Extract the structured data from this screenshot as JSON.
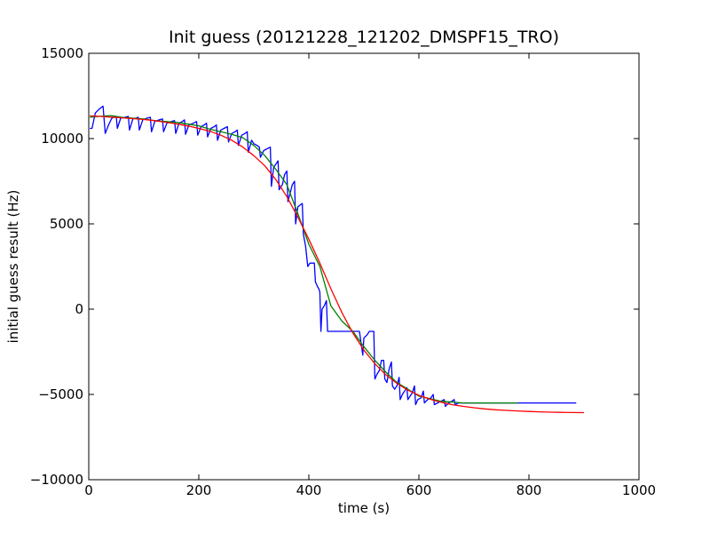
{
  "chart_data": {
    "type": "line",
    "title": "Init guess (20121228_121202_DMSPF15_TRO)",
    "xlabel": "time (s)",
    "ylabel": "initial guess result (Hz)",
    "xlim": [
      0,
      1000
    ],
    "ylim": [
      -10000,
      15000
    ],
    "x_ticks": [
      0,
      200,
      400,
      600,
      800,
      1000
    ],
    "y_ticks": [
      -10000,
      -5000,
      0,
      5000,
      10000,
      15000
    ],
    "x_tick_labels": [
      "0",
      "200",
      "400",
      "600",
      "800",
      "1000"
    ],
    "y_tick_labels": [
      "−10000",
      "−5000",
      "0",
      "5000",
      "10000",
      "15000"
    ],
    "grid": false,
    "legend": "none",
    "series": [
      {
        "color": "#0000ff",
        "points": [
          [
            2,
            10600
          ],
          [
            6,
            10600
          ],
          [
            12,
            11500
          ],
          [
            18,
            11700
          ],
          [
            22,
            11800
          ],
          [
            26,
            11900
          ],
          [
            30,
            10300
          ],
          [
            36,
            10800
          ],
          [
            42,
            11200
          ],
          [
            46,
            11250
          ],
          [
            50,
            11300
          ],
          [
            52,
            10600
          ],
          [
            58,
            11200
          ],
          [
            66,
            11250
          ],
          [
            72,
            11300
          ],
          [
            74,
            10500
          ],
          [
            80,
            11150
          ],
          [
            86,
            11200
          ],
          [
            90,
            11250
          ],
          [
            92,
            10500
          ],
          [
            98,
            11100
          ],
          [
            106,
            11200
          ],
          [
            112,
            11250
          ],
          [
            114,
            10400
          ],
          [
            120,
            11000
          ],
          [
            128,
            11100
          ],
          [
            134,
            11150
          ],
          [
            136,
            10400
          ],
          [
            142,
            10900
          ],
          [
            150,
            11000
          ],
          [
            156,
            11050
          ],
          [
            158,
            10300
          ],
          [
            164,
            10900
          ],
          [
            170,
            11000
          ],
          [
            174,
            11100
          ],
          [
            176,
            10250
          ],
          [
            182,
            10800
          ],
          [
            190,
            10900
          ],
          [
            196,
            11000
          ],
          [
            198,
            10200
          ],
          [
            204,
            10700
          ],
          [
            210,
            10800
          ],
          [
            214,
            10900
          ],
          [
            216,
            10100
          ],
          [
            222,
            10600
          ],
          [
            228,
            10700
          ],
          [
            232,
            10800
          ],
          [
            234,
            9900
          ],
          [
            240,
            10500
          ],
          [
            246,
            10600
          ],
          [
            252,
            10700
          ],
          [
            254,
            9800
          ],
          [
            260,
            10300
          ],
          [
            266,
            10400
          ],
          [
            270,
            10500
          ],
          [
            272,
            9600
          ],
          [
            278,
            10200
          ],
          [
            284,
            10300
          ],
          [
            288,
            10400
          ],
          [
            290,
            9200
          ],
          [
            296,
            9900
          ],
          [
            300,
            9700
          ],
          [
            306,
            9600
          ],
          [
            310,
            9500
          ],
          [
            312,
            8900
          ],
          [
            318,
            9300
          ],
          [
            324,
            9400
          ],
          [
            330,
            9500
          ],
          [
            332,
            7200
          ],
          [
            336,
            8300
          ],
          [
            340,
            8500
          ],
          [
            344,
            8700
          ],
          [
            346,
            7000
          ],
          [
            352,
            7300
          ],
          [
            356,
            7900
          ],
          [
            360,
            8100
          ],
          [
            362,
            6300
          ],
          [
            366,
            6800
          ],
          [
            370,
            7300
          ],
          [
            374,
            7500
          ],
          [
            376,
            5000
          ],
          [
            380,
            6000
          ],
          [
            384,
            6100
          ],
          [
            388,
            6200
          ],
          [
            390,
            4400
          ],
          [
            394,
            3700
          ],
          [
            398,
            2500
          ],
          [
            402,
            2700
          ],
          [
            406,
            2700
          ],
          [
            410,
            2700
          ],
          [
            412,
            1600
          ],
          [
            416,
            1300
          ],
          [
            418,
            1200
          ],
          [
            420,
            1000
          ],
          [
            422,
            -1300
          ],
          [
            424,
            0
          ],
          [
            428,
            200
          ],
          [
            432,
            500
          ],
          [
            434,
            -1300
          ],
          [
            440,
            -1300
          ],
          [
            450,
            -1300
          ],
          [
            460,
            -1300
          ],
          [
            470,
            -1300
          ],
          [
            480,
            -1300
          ],
          [
            492,
            -1300
          ],
          [
            498,
            -2700
          ],
          [
            500,
            -1700
          ],
          [
            506,
            -1500
          ],
          [
            510,
            -1300
          ],
          [
            514,
            -1300
          ],
          [
            518,
            -1300
          ],
          [
            520,
            -4100
          ],
          [
            524,
            -3800
          ],
          [
            528,
            -3600
          ],
          [
            532,
            -3000
          ],
          [
            536,
            -3000
          ],
          [
            538,
            -4100
          ],
          [
            542,
            -4300
          ],
          [
            546,
            -3500
          ],
          [
            550,
            -3100
          ],
          [
            552,
            -4500
          ],
          [
            556,
            -4700
          ],
          [
            560,
            -4500
          ],
          [
            564,
            -4000
          ],
          [
            566,
            -5300
          ],
          [
            570,
            -5000
          ],
          [
            574,
            -4800
          ],
          [
            578,
            -4600
          ],
          [
            580,
            -5300
          ],
          [
            584,
            -5100
          ],
          [
            588,
            -4900
          ],
          [
            592,
            -4500
          ],
          [
            594,
            -5600
          ],
          [
            598,
            -5300
          ],
          [
            604,
            -5200
          ],
          [
            608,
            -4800
          ],
          [
            610,
            -5500
          ],
          [
            616,
            -5300
          ],
          [
            622,
            -5200
          ],
          [
            626,
            -5000
          ],
          [
            628,
            -5600
          ],
          [
            634,
            -5500
          ],
          [
            640,
            -5400
          ],
          [
            646,
            -5300
          ],
          [
            648,
            -5700
          ],
          [
            654,
            -5500
          ],
          [
            660,
            -5400
          ],
          [
            664,
            -5300
          ],
          [
            666,
            -5600
          ],
          [
            672,
            -5500
          ],
          [
            680,
            -5500
          ],
          [
            688,
            -5500
          ],
          [
            704,
            -5500
          ],
          [
            720,
            -5500
          ],
          [
            736,
            -5500
          ],
          [
            752,
            -5500
          ],
          [
            768,
            -5500
          ],
          [
            784,
            -5500
          ],
          [
            800,
            -5500
          ],
          [
            816,
            -5500
          ],
          [
            832,
            -5500
          ],
          [
            848,
            -5500
          ],
          [
            864,
            -5500
          ],
          [
            880,
            -5500
          ],
          [
            886,
            -5500
          ]
        ]
      },
      {
        "color": "#008000",
        "points": [
          [
            2,
            11250
          ],
          [
            20,
            11300
          ],
          [
            40,
            11350
          ],
          [
            60,
            11250
          ],
          [
            80,
            11200
          ],
          [
            100,
            11150
          ],
          [
            120,
            11050
          ],
          [
            140,
            11000
          ],
          [
            160,
            10950
          ],
          [
            180,
            10850
          ],
          [
            200,
            10750
          ],
          [
            220,
            10550
          ],
          [
            240,
            10400
          ],
          [
            260,
            10250
          ],
          [
            280,
            10050
          ],
          [
            300,
            9600
          ],
          [
            320,
            9000
          ],
          [
            340,
            8200
          ],
          [
            360,
            7300
          ],
          [
            380,
            5600
          ],
          [
            400,
            3800
          ],
          [
            420,
            2500
          ],
          [
            440,
            200
          ],
          [
            460,
            -700
          ],
          [
            480,
            -1300
          ],
          [
            500,
            -2200
          ],
          [
            520,
            -3000
          ],
          [
            540,
            -3700
          ],
          [
            560,
            -4300
          ],
          [
            580,
            -4700
          ],
          [
            600,
            -5100
          ],
          [
            620,
            -5250
          ],
          [
            640,
            -5400
          ],
          [
            660,
            -5450
          ],
          [
            680,
            -5500
          ],
          [
            700,
            -5500
          ],
          [
            720,
            -5500
          ],
          [
            740,
            -5500
          ],
          [
            760,
            -5500
          ],
          [
            780,
            -5500
          ]
        ]
      },
      {
        "color": "#ff0000",
        "points": [
          [
            2,
            11330
          ],
          [
            20,
            11300
          ],
          [
            40,
            11260
          ],
          [
            60,
            11220
          ],
          [
            80,
            11170
          ],
          [
            100,
            11120
          ],
          [
            120,
            11050
          ],
          [
            140,
            10960
          ],
          [
            160,
            10860
          ],
          [
            180,
            10740
          ],
          [
            200,
            10600
          ],
          [
            220,
            10430
          ],
          [
            240,
            10200
          ],
          [
            260,
            9900
          ],
          [
            280,
            9500
          ],
          [
            300,
            9000
          ],
          [
            320,
            8400
          ],
          [
            340,
            7600
          ],
          [
            360,
            6600
          ],
          [
            380,
            5400
          ],
          [
            400,
            4100
          ],
          [
            420,
            2700
          ],
          [
            440,
            1200
          ],
          [
            460,
            -200
          ],
          [
            480,
            -1400
          ],
          [
            500,
            -2400
          ],
          [
            520,
            -3200
          ],
          [
            540,
            -3850
          ],
          [
            560,
            -4350
          ],
          [
            580,
            -4750
          ],
          [
            600,
            -5050
          ],
          [
            620,
            -5280
          ],
          [
            640,
            -5460
          ],
          [
            660,
            -5600
          ],
          [
            680,
            -5700
          ],
          [
            700,
            -5780
          ],
          [
            720,
            -5850
          ],
          [
            740,
            -5900
          ],
          [
            760,
            -5940
          ],
          [
            780,
            -5970
          ],
          [
            800,
            -6000
          ],
          [
            820,
            -6020
          ],
          [
            840,
            -6040
          ],
          [
            860,
            -6050
          ],
          [
            880,
            -6060
          ],
          [
            900,
            -6070
          ]
        ]
      }
    ]
  }
}
